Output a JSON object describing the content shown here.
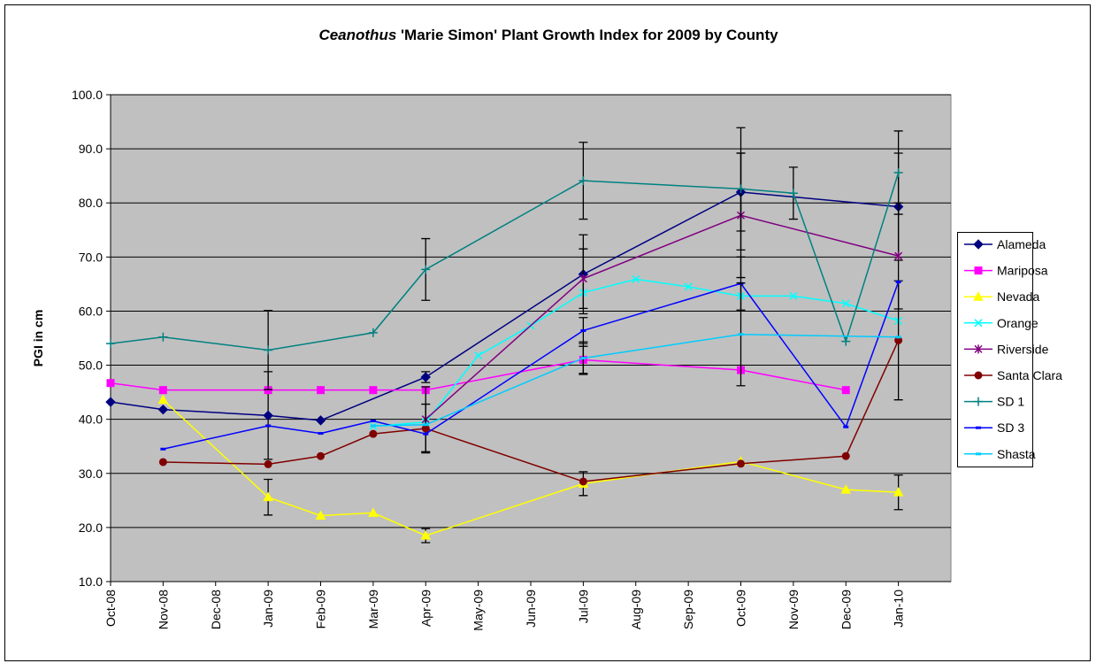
{
  "chart_data": {
    "type": "line",
    "title": [
      "Ceanothus",
      "'Marie Simon' Plant Growth Index for 2009 by County"
    ],
    "y_label": "PGI in cm",
    "categories": [
      "Oct-08",
      "Nov-08",
      "Dec-08",
      "Jan-09",
      "Feb-09",
      "Mar-09",
      "Apr-09",
      "May-09",
      "Jun-09",
      "Jul-09",
      "Aug-09",
      "Sep-09",
      "Oct-09",
      "Nov-09",
      "Dec-09",
      "Jan-10"
    ],
    "ylim": [
      10,
      100
    ],
    "yticks": [
      {
        "value": 10,
        "label": "10.0"
      },
      {
        "value": 20,
        "label": "20.0"
      },
      {
        "value": 30,
        "label": "30.0"
      },
      {
        "value": 40,
        "label": "40.0"
      },
      {
        "value": 50,
        "label": "50.0"
      },
      {
        "value": 60,
        "label": "60.0"
      },
      {
        "value": 70,
        "label": "70.0"
      },
      {
        "value": 80,
        "label": "80.0"
      },
      {
        "value": 90,
        "label": "90.0"
      },
      {
        "value": 100,
        "label": "100.0"
      }
    ],
    "grid": true,
    "legend": "right",
    "series": [
      {
        "name": "Alameda",
        "color": "#000080",
        "marker": "diamond",
        "x": [
          "Oct-08",
          "Nov-08",
          "Jan-09",
          "Feb-09",
          "Apr-09",
          "Jul-09",
          "Oct-09",
          "Jan-10"
        ],
        "values": [
          43.2,
          41.8,
          40.7,
          39.8,
          47.8,
          66.8,
          82.0,
          79.3
        ],
        "errors": [
          null,
          null,
          8.1,
          null,
          1.0,
          7.3,
          7.2,
          9.9
        ]
      },
      {
        "name": "Mariposa",
        "color": "#ff00ff",
        "marker": "square",
        "x": [
          "Oct-08",
          "Nov-08",
          "Jan-09",
          "Feb-09",
          "Mar-09",
          "Apr-09",
          "Jul-09",
          "Oct-09",
          "Dec-09"
        ],
        "values": [
          46.7,
          45.4,
          45.4,
          45.4,
          45.4,
          45.4,
          51.0,
          49.1,
          45.4
        ],
        "errors": [
          null,
          null,
          null,
          null,
          null,
          null,
          2.5,
          null,
          null
        ]
      },
      {
        "name": "Nevada",
        "color": "#ffff00",
        "marker": "triangle",
        "x": [
          "Nov-08",
          "Jan-09",
          "Feb-09",
          "Mar-09",
          "Apr-09",
          "Jul-09",
          "Oct-09",
          "Dec-09",
          "Jan-10"
        ],
        "values": [
          43.6,
          25.6,
          22.2,
          22.7,
          18.5,
          28.1,
          32.2,
          27.0,
          26.5
        ],
        "errors": [
          null,
          3.3,
          null,
          null,
          1.3,
          2.2,
          null,
          null,
          3.2
        ]
      },
      {
        "name": "Orange",
        "color": "#00ffff",
        "marker": "x",
        "x": [
          "Mar-09",
          "Apr-09",
          "May-09",
          "Jun-09",
          "Jul-09",
          "Aug-09",
          "Sep-09",
          "Oct-09",
          "Nov-09",
          "Dec-09",
          "Jan-10"
        ],
        "values": [
          38.7,
          39.5,
          51.8,
          57.3,
          63.4,
          65.9,
          64.5,
          62.8,
          62.8,
          61.4,
          58.2
        ]
      },
      {
        "name": "Riverside",
        "color": "#800080",
        "marker": "asterisk",
        "x": [
          "Apr-09",
          "Jul-09",
          "Oct-09",
          "Jan-10"
        ],
        "values": [
          40.0,
          66.0,
          77.7,
          70.2
        ],
        "errors": [
          6.0,
          5.5,
          11.5,
          9.8
        ]
      },
      {
        "name": "Santa Clara",
        "color": "#800000",
        "marker": "circle",
        "x": [
          "Nov-08",
          "Jan-09",
          "Feb-09",
          "Mar-09",
          "Apr-09",
          "Jul-09",
          "Oct-09",
          "Dec-09",
          "Jan-10"
        ],
        "values": [
          32.1,
          31.7,
          33.2,
          37.3,
          38.3,
          28.5,
          31.8,
          33.2,
          54.6
        ],
        "errors": [
          null,
          null,
          null,
          null,
          4.5,
          null,
          null,
          null,
          11.0
        ]
      },
      {
        "name": "SD 1",
        "color": "#008080",
        "marker": "plus",
        "x": [
          "Oct-08",
          "Nov-08",
          "Jan-09",
          "Mar-09",
          "Apr-09",
          "Jul-09",
          "Oct-09",
          "Nov-09",
          "Dec-09",
          "Jan-10"
        ],
        "values": [
          54.0,
          55.2,
          52.8,
          56.0,
          67.7,
          84.1,
          82.6,
          81.8,
          54.4,
          85.6
        ],
        "errors": [
          null,
          null,
          7.3,
          null,
          5.7,
          7.1,
          11.3,
          4.8,
          null,
          7.7
        ]
      },
      {
        "name": "SD 3",
        "color": "#0000ff",
        "marker": "dash",
        "x": [
          "Nov-08",
          "Jan-09",
          "Feb-09",
          "Mar-09",
          "Apr-09",
          "Jul-09",
          "Oct-09",
          "Dec-09",
          "Jan-10"
        ],
        "values": [
          34.5,
          38.8,
          37.4,
          39.7,
          37.3,
          56.4,
          65.1,
          38.6,
          65.4
        ],
        "errors": [
          null,
          null,
          null,
          null,
          null,
          2.4,
          4.9,
          null,
          null
        ]
      },
      {
        "name": "Shasta",
        "color": "#00ccff",
        "marker": "dash",
        "x": [
          "Mar-09",
          "Apr-09",
          "Jul-09",
          "Oct-09",
          "Jan-10"
        ],
        "values": [
          38.8,
          39.0,
          51.3,
          55.7,
          55.2
        ],
        "errors": [
          null,
          null,
          3.0,
          9.5,
          null
        ]
      }
    ]
  }
}
